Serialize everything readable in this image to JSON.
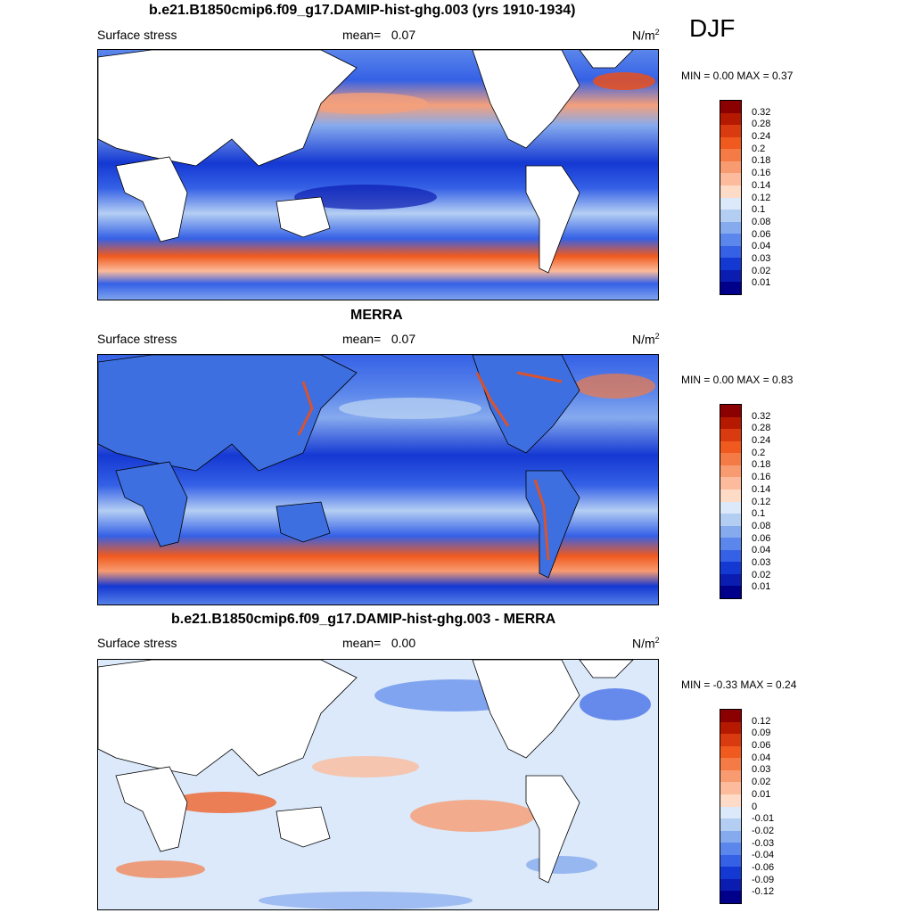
{
  "season": "DJF",
  "units_main": "N/m",
  "units_exp": "2",
  "panels": [
    {
      "title": "b.e21.B1850cmip6.f09_g17.DAMIP-hist-ghg.003 (yrs 1910-1934)",
      "variable": "Surface stress",
      "mean_label": "mean=",
      "mean_value": "0.07",
      "minmax": "MIN =   0.00 MAX =   0.37",
      "colorbar_labels": [
        "0.32",
        "0.28",
        "0.24",
        "0.2",
        "0.18",
        "0.16",
        "0.14",
        "0.12",
        "0.1",
        "0.08",
        "0.06",
        "0.04",
        "0.03",
        "0.02",
        "0.01"
      ]
    },
    {
      "title": "MERRA",
      "variable": "Surface stress",
      "mean_label": "mean=",
      "mean_value": "0.07",
      "minmax": "MIN =   0.00 MAX =   0.83",
      "colorbar_labels": [
        "0.32",
        "0.28",
        "0.24",
        "0.2",
        "0.18",
        "0.16",
        "0.14",
        "0.12",
        "0.1",
        "0.08",
        "0.06",
        "0.04",
        "0.03",
        "0.02",
        "0.01"
      ]
    },
    {
      "title": "b.e21.B1850cmip6.f09_g17.DAMIP-hist-ghg.003 - MERRA",
      "variable": "Surface stress",
      "mean_label": "mean=",
      "mean_value": "0.00",
      "minmax": "MIN =  -0.33 MAX =   0.24",
      "colorbar_labels": [
        "0.12",
        "0.09",
        "0.06",
        "0.04",
        "0.03",
        "0.02",
        "0.01",
        "0",
        "-0.01",
        "-0.02",
        "-0.03",
        "-0.04",
        "-0.06",
        "-0.09",
        "-0.12"
      ]
    }
  ],
  "colors": {
    "colorbar_top_to_bottom": [
      "#8b0000",
      "#b51a00",
      "#d93a0f",
      "#f05a1e",
      "#f47b45",
      "#f89b70",
      "#fbbb9c",
      "#fddbc7",
      "#dbe9fa",
      "#b4cef3",
      "#86aaee",
      "#5b86eb",
      "#3561e6",
      "#1438d2",
      "#0b1cb0",
      "#00008b"
    ],
    "ocean_mid": "#3d6fe0",
    "land": "#ffffff"
  }
}
